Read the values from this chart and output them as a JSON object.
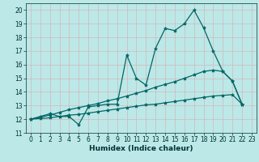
{
  "xlabel": "Humidex (Indice chaleur)",
  "xlim": [
    -0.5,
    23.5
  ],
  "ylim": [
    11,
    20.5
  ],
  "xticks": [
    0,
    1,
    2,
    3,
    4,
    5,
    6,
    7,
    8,
    9,
    10,
    11,
    12,
    13,
    14,
    15,
    16,
    17,
    18,
    19,
    20,
    21,
    22,
    23
  ],
  "yticks": [
    11,
    12,
    13,
    14,
    15,
    16,
    17,
    18,
    19,
    20
  ],
  "bg_color": "#bde8e8",
  "grid_color_major": "#d0b8b8",
  "grid_color_minor": "#d0b8b8",
  "line_color": "#006666",
  "series1_y": [
    12.0,
    12.2,
    12.4,
    12.2,
    12.2,
    11.6,
    12.9,
    13.0,
    13.1,
    13.1,
    16.7,
    15.0,
    14.5,
    17.2,
    18.65,
    18.5,
    19.0,
    20.0,
    18.7,
    17.0,
    15.5,
    14.8,
    13.1
  ],
  "series2_y": [
    12.0,
    12.15,
    12.3,
    12.5,
    12.7,
    12.85,
    13.0,
    13.15,
    13.35,
    13.5,
    13.7,
    13.9,
    14.1,
    14.35,
    14.55,
    14.75,
    15.0,
    15.25,
    15.5,
    15.6,
    15.5,
    14.8,
    13.1
  ],
  "series3_y": [
    12.0,
    12.05,
    12.1,
    12.2,
    12.3,
    12.35,
    12.45,
    12.55,
    12.65,
    12.75,
    12.85,
    12.95,
    13.05,
    13.1,
    13.2,
    13.3,
    13.4,
    13.5,
    13.6,
    13.7,
    13.75,
    13.8,
    13.1
  ],
  "marker": "*",
  "markersize": 3,
  "linewidth": 0.9,
  "font_color": "#003333",
  "tick_fontsize": 5.5,
  "label_fontsize": 6.5
}
